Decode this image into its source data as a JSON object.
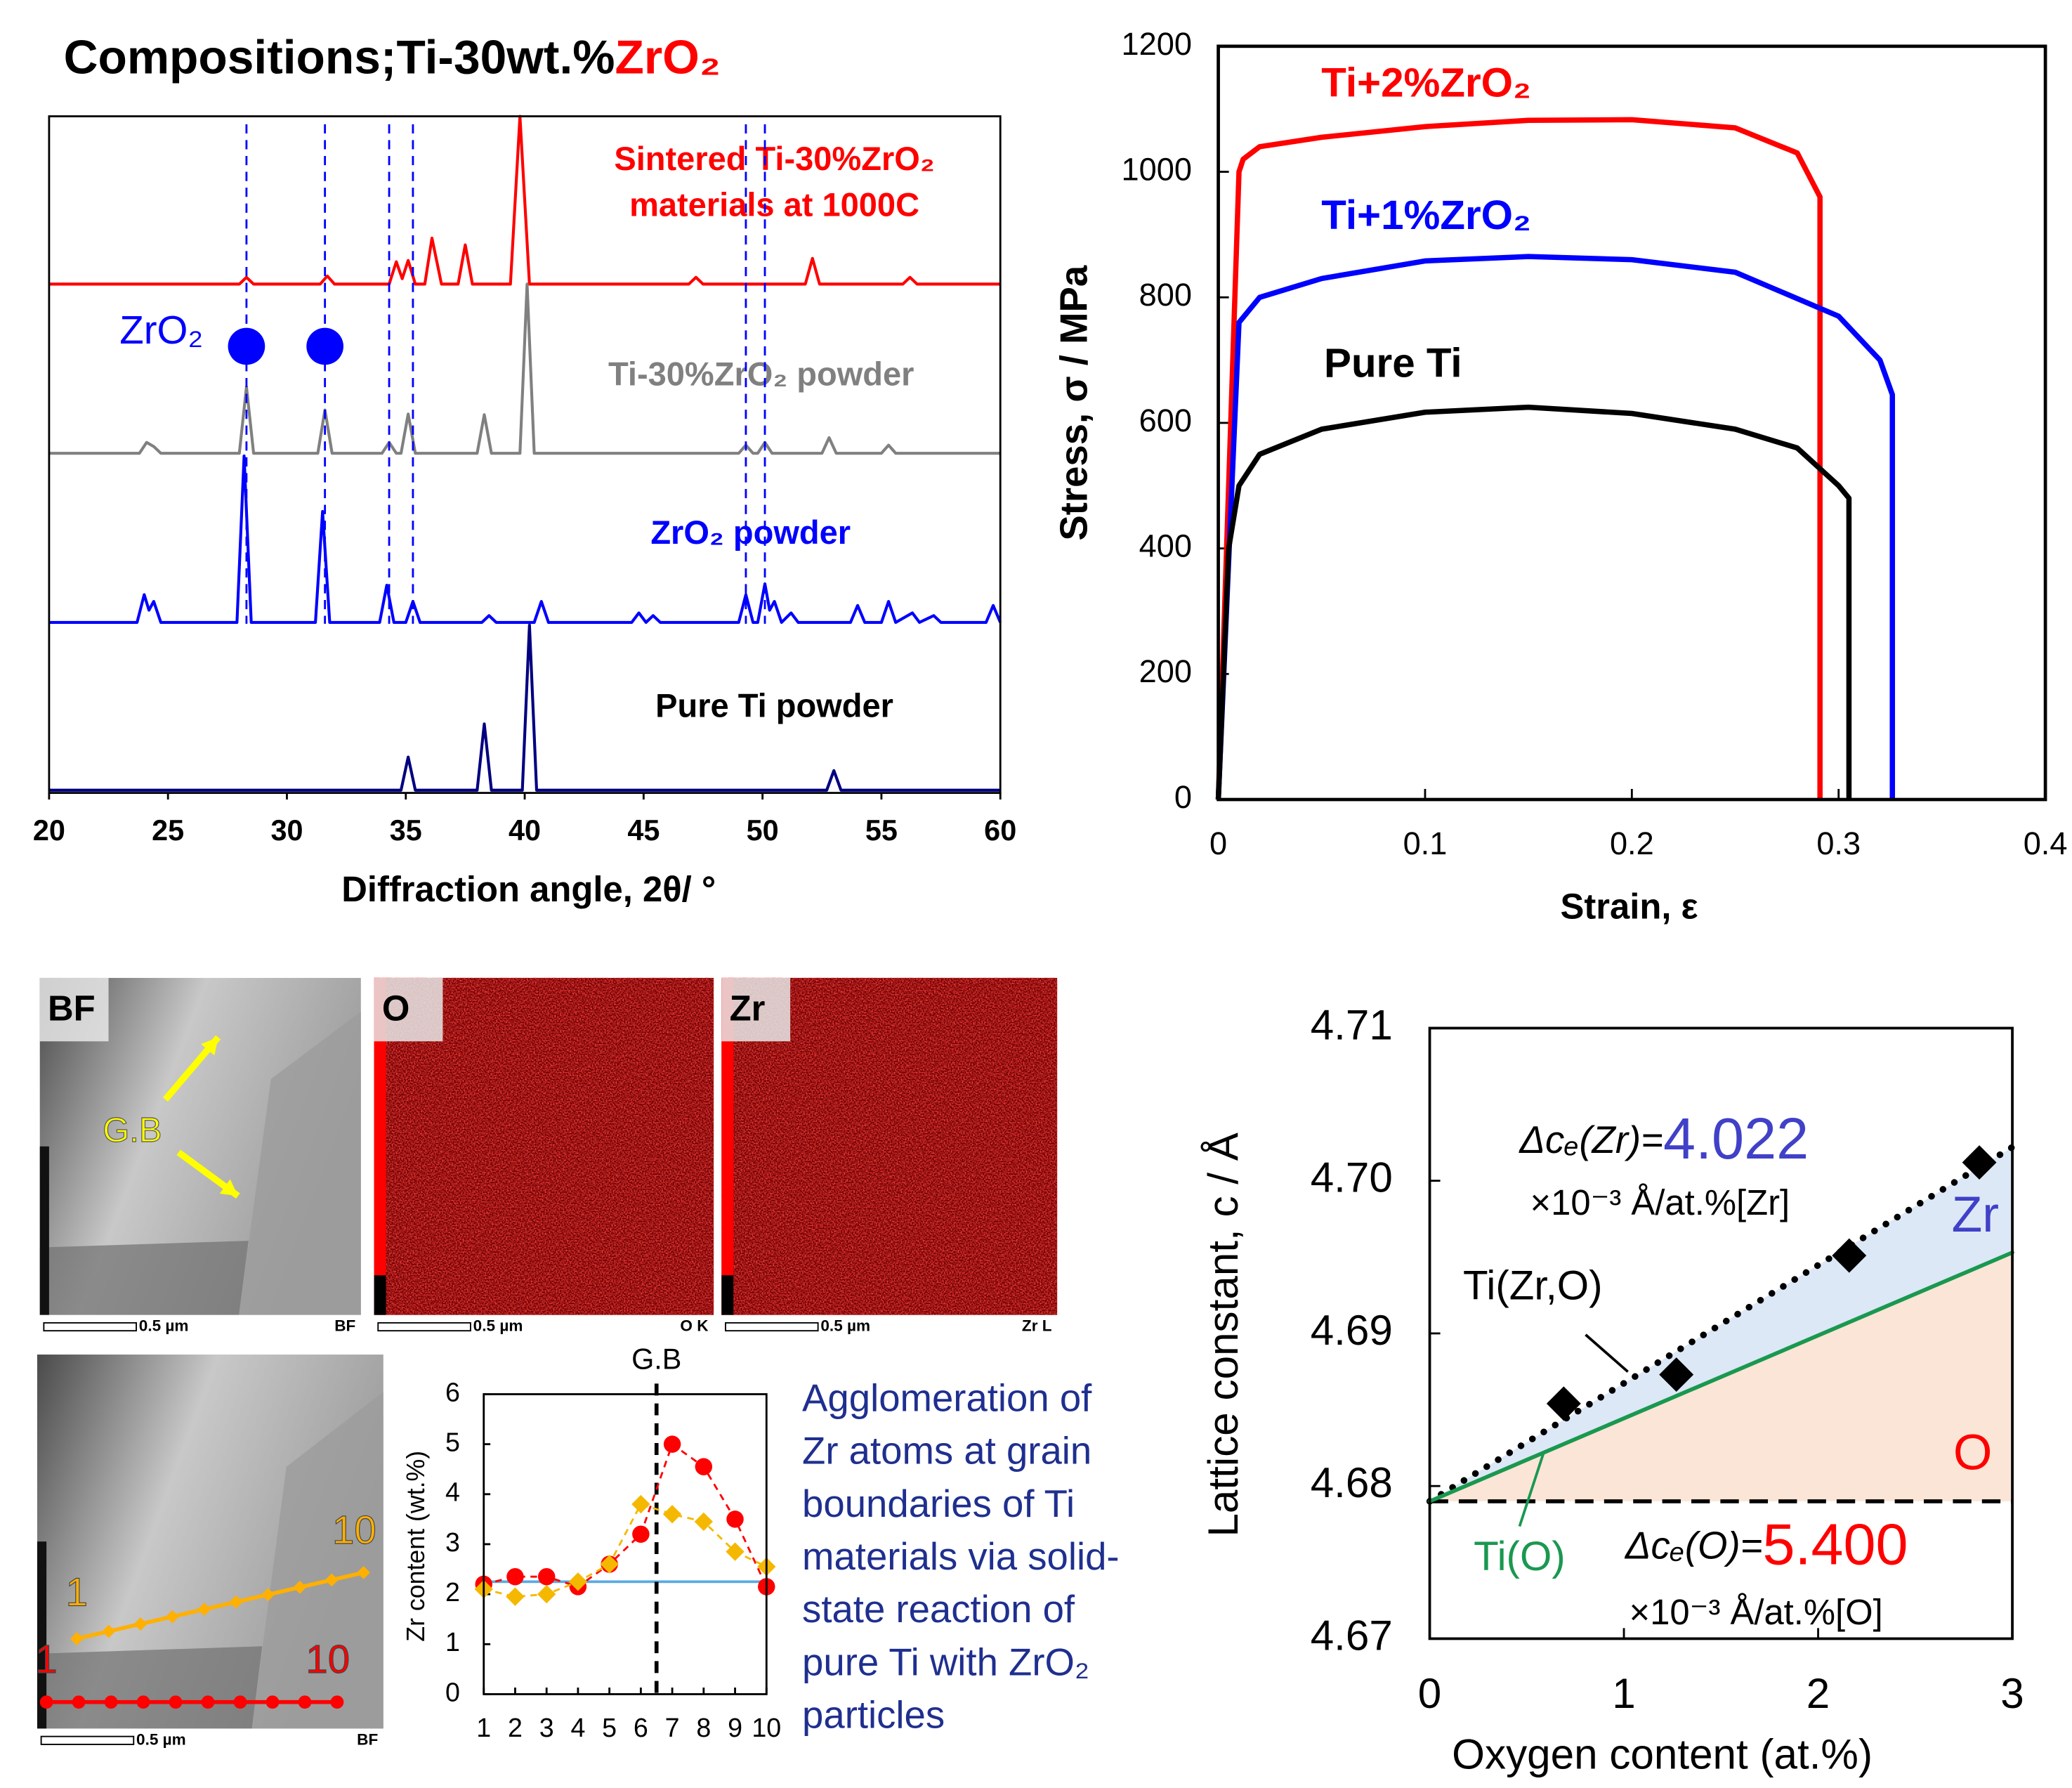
{
  "chart_data": [
    {
      "type": "line",
      "title": "Compositions;Ti-30wt.%",
      "title_highlight": "ZrO₂",
      "xlabel": "Diffraction angle, 2θ/ °",
      "xlim": [
        20,
        60
      ],
      "xticks": [
        20,
        25,
        30,
        35,
        40,
        45,
        50,
        55,
        60
      ],
      "ylim": [
        0,
        100
      ],
      "series": [
        {
          "label": [
            "Sintered Ti-30%ZrO₂",
            "materials at 1000C"
          ],
          "color": "#ff0000",
          "label_color": "#ff0000",
          "x": [
            20,
            28.0,
            28.3,
            28.6,
            31.4,
            31.7,
            32.0,
            34.3,
            34.6,
            34.85,
            35.1,
            35.4,
            35.8,
            36.1,
            36.5,
            37.2,
            37.5,
            37.8,
            39.4,
            39.8,
            40.2,
            46.9,
            47.2,
            47.5,
            51.8,
            52.1,
            52.4,
            55.9,
            56.2,
            56.5,
            60
          ],
          "values": [
            75.2,
            75.2,
            76.2,
            75.2,
            75.2,
            76.4,
            75.2,
            75.2,
            78.5,
            76,
            78.7,
            75.2,
            75.2,
            82,
            75.2,
            75.2,
            81,
            75.2,
            75.2,
            100,
            75.2,
            75.2,
            76.2,
            75.2,
            75.2,
            79,
            75.2,
            75.2,
            76.2,
            75.2,
            75.2
          ]
        },
        {
          "label": [
            "Ti-30%ZrO₂ powder"
          ],
          "color": "#808080",
          "label_color": "#808080",
          "x": [
            20,
            23.8,
            24.1,
            24.4,
            24.7,
            28.0,
            28.3,
            28.6,
            31.3,
            31.6,
            31.9,
            34.0,
            34.3,
            34.6,
            34.8,
            35.1,
            35.4,
            38.0,
            38.3,
            38.6,
            39.8,
            40.1,
            40.4,
            49.0,
            49.3,
            49.6,
            49.8,
            50.1,
            50.4,
            52.5,
            52.8,
            53.1,
            55.0,
            55.3,
            55.6,
            60
          ],
          "values": [
            50.2,
            50.2,
            51.8,
            51.2,
            50.2,
            50.2,
            60,
            50.2,
            50.2,
            56.6,
            50.2,
            50.2,
            51.8,
            50.2,
            50.2,
            56,
            50.2,
            50.2,
            55.9,
            50.2,
            50.2,
            75.2,
            50.2,
            50.2,
            51.4,
            50.2,
            50.2,
            51.8,
            50.2,
            50.2,
            52.5,
            50.2,
            50.2,
            51.4,
            50.2,
            50.2
          ]
        },
        {
          "label": [
            "ZrO₂ powder"
          ],
          "color": "#0000ff",
          "label_color": "#0000ff",
          "x": [
            20,
            23.7,
            24.0,
            24.2,
            24.4,
            24.7,
            27.9,
            28.2,
            28.5,
            31.2,
            31.5,
            31.8,
            33.9,
            34.2,
            34.5,
            35.0,
            35.3,
            35.6,
            38.2,
            38.5,
            38.8,
            40.4,
            40.7,
            41.0,
            44.5,
            44.8,
            45.1,
            45.4,
            45.7,
            49.0,
            49.3,
            49.6,
            49.8,
            50.1,
            50.3,
            50.5,
            50.8,
            51.2,
            51.5,
            53.7,
            54.0,
            54.3,
            55.0,
            55.3,
            55.6,
            56.3,
            56.6,
            57.2,
            57.5,
            59.4,
            59.7,
            60
          ],
          "values": [
            25.2,
            25.2,
            29.3,
            27,
            28.3,
            25.2,
            25.2,
            49.8,
            25.2,
            25.2,
            41.6,
            25.2,
            25.2,
            30.7,
            25.2,
            25.2,
            28.3,
            25.2,
            25.2,
            26.2,
            25.2,
            25.2,
            28.3,
            25.2,
            25.2,
            26.6,
            25.2,
            26.2,
            25.2,
            25.2,
            29.3,
            25.2,
            25.2,
            30.9,
            27,
            28.3,
            25.2,
            26.6,
            25.2,
            25.2,
            27.7,
            25.2,
            25.2,
            28.3,
            25.2,
            26.6,
            25.2,
            26.2,
            25.2,
            25.2,
            27.7,
            25.2
          ]
        },
        {
          "label": [
            "Pure Ti powder"
          ],
          "color": "#000080",
          "label_color": "#000000",
          "x": [
            20,
            34.8,
            35.1,
            35.4,
            38.0,
            38.3,
            38.6,
            39.9,
            40.2,
            40.5,
            52.7,
            53.0,
            53.3,
            60
          ],
          "values": [
            0.4,
            0.4,
            5.3,
            0.4,
            0.4,
            10.2,
            0.4,
            0.4,
            24.8,
            0.4,
            0.4,
            3.3,
            0.4,
            0.4
          ]
        }
      ],
      "reference_lines": {
        "x": [
          28.3,
          31.6,
          34.3,
          35.3,
          49.3,
          50.1
        ],
        "color": "#0000ff"
      },
      "markers": {
        "label": "ZrO₂",
        "x": [
          28.3,
          31.6
        ],
        "values": [
          66,
          66
        ],
        "color": "#0000ff"
      }
    },
    {
      "type": "line",
      "xlabel": "Strain, ε",
      "ylabel": "Stress, σ / MPa",
      "xlim": [
        0,
        0.4
      ],
      "xticks": [
        0,
        0.1,
        0.2,
        0.3,
        0.4
      ],
      "ylim": [
        0,
        1200
      ],
      "yticks": [
        0,
        200,
        400,
        600,
        800,
        1000,
        1200
      ],
      "series": [
        {
          "label": [
            "Ti+2%ZrO₂"
          ],
          "color": "#ff0000",
          "label_color": "#ff0000",
          "x": [
            0,
            0.01,
            0.012,
            0.02,
            0.05,
            0.1,
            0.15,
            0.2,
            0.25,
            0.28,
            0.291,
            0.291
          ],
          "values": [
            0,
            1000,
            1020,
            1040,
            1055,
            1072,
            1082,
            1083,
            1070,
            1030,
            960,
            0
          ]
        },
        {
          "label": [
            "Ti+1%ZrO₂"
          ],
          "color": "#0000ff",
          "label_color": "#0000ff",
          "x": [
            0,
            0.01,
            0.02,
            0.05,
            0.1,
            0.15,
            0.2,
            0.25,
            0.3,
            0.32,
            0.326,
            0.326
          ],
          "values": [
            0,
            760,
            800,
            830,
            858,
            865,
            860,
            840,
            770,
            700,
            645,
            0
          ]
        },
        {
          "label": [
            "Pure Ti"
          ],
          "color": "#000000",
          "label_color": "#000000",
          "x": [
            0,
            0.005,
            0.01,
            0.02,
            0.05,
            0.1,
            0.15,
            0.2,
            0.25,
            0.28,
            0.3,
            0.305,
            0.305
          ],
          "values": [
            0,
            400,
            500,
            550,
            590,
            617,
            625,
            615,
            590,
            560,
            500,
            480,
            0
          ]
        }
      ]
    },
    {
      "type": "line",
      "ylabel": "Zr content (wt.%)",
      "xlim": [
        1,
        10
      ],
      "xticks": [
        1,
        2,
        3,
        4,
        5,
        6,
        7,
        8,
        9,
        10
      ],
      "ylim": [
        0,
        6
      ],
      "yticks": [
        0,
        1,
        2,
        3,
        4,
        5,
        6
      ],
      "series": [
        {
          "color": "#ff0000",
          "marker": "circle",
          "x": [
            1,
            2,
            3,
            4,
            5,
            6,
            7,
            8,
            9,
            10
          ],
          "values": [
            2.2,
            2.35,
            2.35,
            2.15,
            2.6,
            3.2,
            5.0,
            4.55,
            3.5,
            2.15
          ]
        },
        {
          "color": "#f5b800",
          "marker": "diamond",
          "x": [
            1,
            2,
            3,
            4,
            5,
            6,
            7,
            8,
            9,
            10
          ],
          "values": [
            2.1,
            1.95,
            2.0,
            2.25,
            2.6,
            3.8,
            3.6,
            3.45,
            2.85,
            2.55
          ]
        }
      ],
      "hline": {
        "value": 2.25,
        "color": "#5aaae0"
      },
      "gb_line": {
        "x": 6.5,
        "label": "G.B"
      }
    },
    {
      "type": "scatter",
      "xlabel": "Oxygen content (at.%)",
      "ylabel": "Lattice constant, c / Å",
      "xlim": [
        0,
        3
      ],
      "xticks": [
        0,
        1,
        2,
        3
      ],
      "ylim": [
        4.67,
        4.71
      ],
      "yticks": [
        4.67,
        4.68,
        4.69,
        {
          "value": 4.7,
          "label": "4.70"
        },
        4.71
      ],
      "x": [
        0.69,
        1.27,
        2.16,
        2.83
      ],
      "values": [
        4.6854,
        4.6873,
        4.6951,
        4.7012
      ],
      "color": "#000000",
      "fits": [
        {
          "name": "Ti(Zr,O)",
          "x": [
            0,
            3
          ],
          "values": [
            4.679,
            4.7022
          ],
          "color": "#000000",
          "fill": "#dce8f6"
        },
        {
          "name": "Ti(O)",
          "x": [
            0,
            3
          ],
          "values": [
            4.679,
            4.6953
          ],
          "color": "#1a9850",
          "fill": "#fbe5d6"
        }
      ],
      "hline": {
        "value": 4.679,
        "color": "#000000"
      },
      "area_labels": [
        "Zr",
        "O"
      ],
      "slopes": [
        {
          "prefix": "Δcₑ(Zr)=",
          "value": "4.022",
          "unit": "×10⁻³ Å/at.%[Zr]",
          "color": "#4040c8"
        },
        {
          "prefix": "Δcₑ(O)=",
          "value": "5.400",
          "unit": "×10⁻³ Å/at.%[O]",
          "color": "#ff0000"
        }
      ]
    }
  ],
  "images": {
    "panels": [
      {
        "label": "BF",
        "scale": "0.5 µm",
        "tag": "BF"
      },
      {
        "label": "O",
        "scale": "0.5 µm",
        "tag": "O K"
      },
      {
        "label": "Zr",
        "scale": "0.5 µm",
        "tag": "Zr L"
      },
      {
        "scale": "0.5 µm",
        "tag": "BF"
      }
    ],
    "gb_label": "G.B",
    "line_labels": [
      "1",
      "10",
      "1",
      "10"
    ]
  },
  "caption": [
    "Agglomeration of",
    "Zr atoms at grain",
    "boundaries of Ti",
    "materials via solid-",
    "state reaction of",
    "pure Ti with ZrO₂",
    "particles"
  ]
}
